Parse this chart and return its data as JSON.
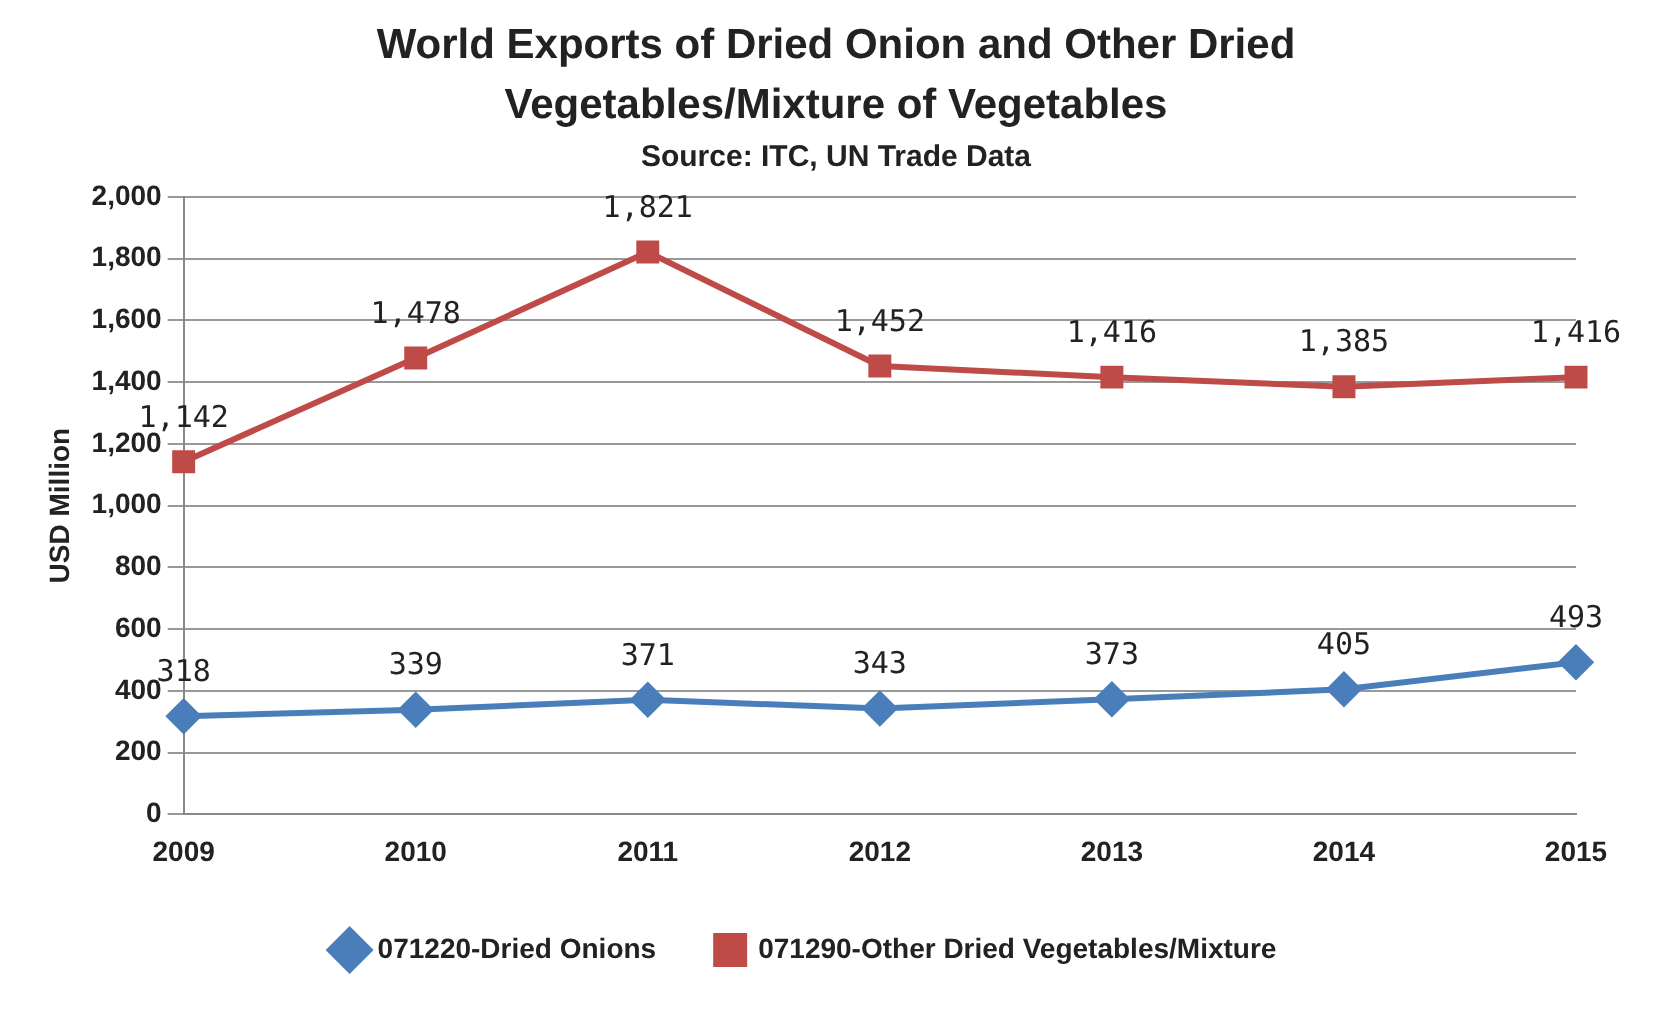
{
  "chart_data": {
    "type": "line",
    "title": "World Exports of Dried Onion and Other Dried Vegetables/Mixture of Vegetables",
    "subtitle": "Source: ITC, UN Trade Data",
    "ylabel": "USD Million",
    "categories": [
      "2009",
      "2010",
      "2011",
      "2012",
      "2013",
      "2014",
      "2015"
    ],
    "series": [
      {
        "name": "071220-Dried Onions",
        "color": "#4a7ebb",
        "marker": "diamond",
        "values": [
          318,
          339,
          371,
          343,
          373,
          405,
          493
        ],
        "value_labels": [
          "318",
          "339",
          "371",
          "343",
          "373",
          "405",
          "493"
        ]
      },
      {
        "name": "071290-Other Dried Vegetables/Mixture",
        "color": "#be4b48",
        "marker": "square",
        "values": [
          1142,
          1478,
          1821,
          1452,
          1416,
          1385,
          1416
        ],
        "value_labels": [
          "1,142",
          "1,478",
          "1,821",
          "1,452",
          "1,416",
          "1,385",
          "1,416"
        ]
      }
    ],
    "ylim": [
      0,
      2000
    ],
    "yticks": [
      {
        "value": 0,
        "label": "0"
      },
      {
        "value": 200,
        "label": "200"
      },
      {
        "value": 400,
        "label": "400"
      },
      {
        "value": 600,
        "label": "600"
      },
      {
        "value": 800,
        "label": "800"
      },
      {
        "value": 1000,
        "label": "1,000"
      },
      {
        "value": 1200,
        "label": "1,200"
      },
      {
        "value": 1400,
        "label": "1,400"
      },
      {
        "value": 1600,
        "label": "1,600"
      },
      {
        "value": 1800,
        "label": "1,800"
      },
      {
        "value": 2000,
        "label": "2,000"
      }
    ],
    "grid": "y",
    "legend": "bottom",
    "line_style": "solid"
  }
}
